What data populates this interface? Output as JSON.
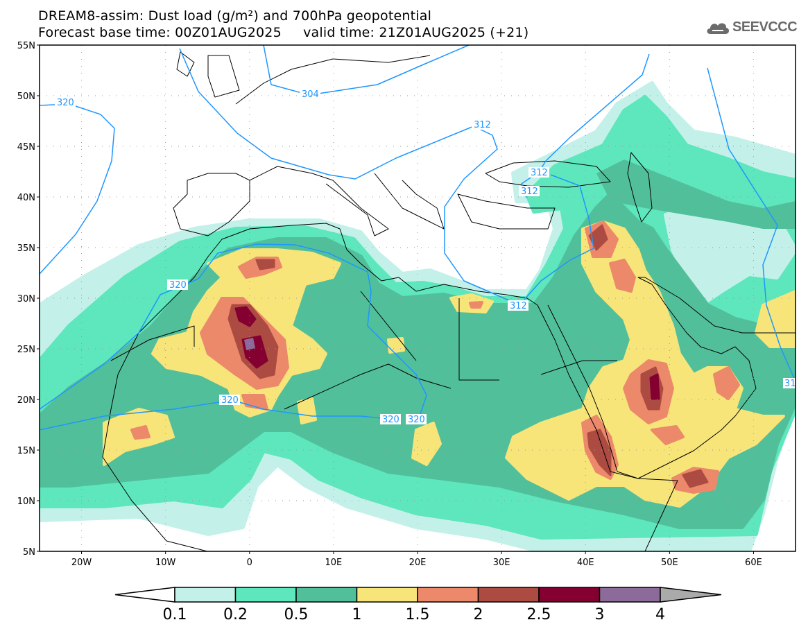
{
  "header": {
    "title_line1": "DREAM8-assim: Dust load (g/m²) and 700hPa geopotential",
    "title_line2": "Forecast base time: 00Z01AUG2025     valid time: 21Z01AUG2025 (+21)",
    "logo_text": "SEEVCCC"
  },
  "axes": {
    "lat_labels": [
      "55N",
      "50N",
      "45N",
      "40N",
      "35N",
      "30N",
      "25N",
      "20N",
      "15N",
      "10N",
      "5N"
    ],
    "lon_labels": [
      "20W",
      "10W",
      "0",
      "10E",
      "20E",
      "30E",
      "40E",
      "50E",
      "60E"
    ]
  },
  "contours": {
    "labels": [
      "320",
      "304",
      "312",
      "312",
      "312",
      "312",
      "320",
      "320",
      "320",
      "320",
      "31"
    ],
    "color": "#1e96ff"
  },
  "colorbar": {
    "labels": [
      "0.1",
      "0.2",
      "0.5",
      "1",
      "1.5",
      "2",
      "2.5",
      "3",
      "4"
    ],
    "colors": [
      "#ffffff",
      "#c3f1ea",
      "#5ee6bc",
      "#52bf9b",
      "#f7e57a",
      "#ec896a",
      "#ac4b41",
      "#840030",
      "#8c6a9a",
      "#aaaaaa"
    ]
  }
}
